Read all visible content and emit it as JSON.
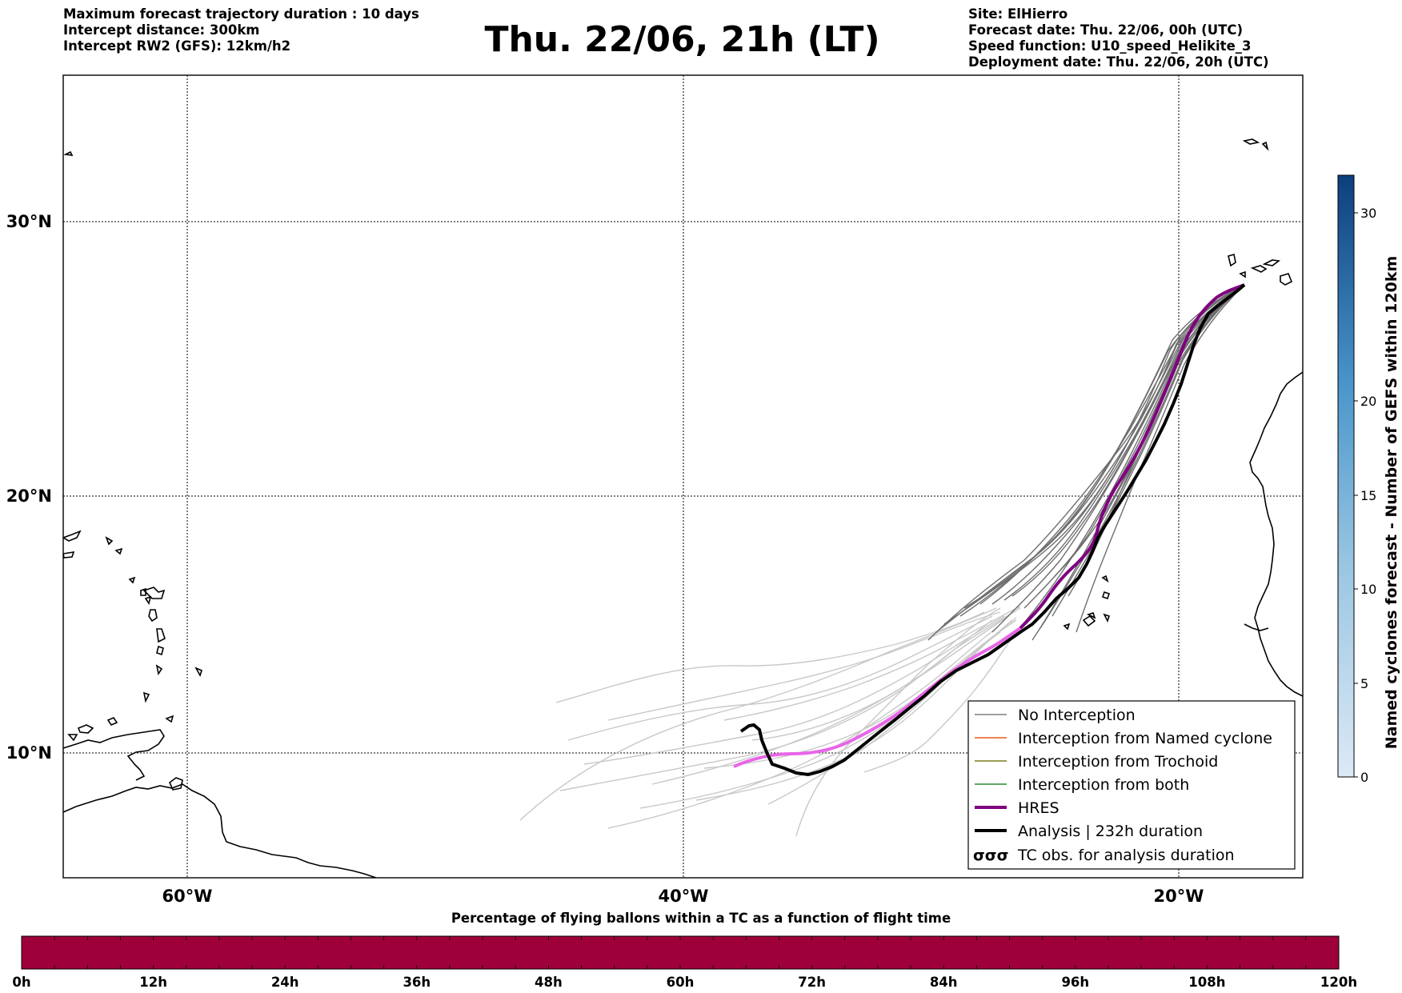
{
  "header": {
    "left_lines": [
      "Maximum forecast trajectory duration : 10 days",
      "Intercept distance: 300km",
      "Intercept RW2 (GFS):  12km/h2"
    ],
    "title": "Thu. 22/06, 21h (LT)",
    "right_lines": [
      "Site: ElHierro",
      "Forecast date: Thu. 22/06, 00h (UTC)",
      "Speed function: U10_speed_Helikite_3",
      "Deployment date: Thu. 22/06, 20h (UTC)"
    ]
  },
  "map": {
    "lat_labels": [
      "30°N",
      "20°N",
      "10°N"
    ],
    "lon_labels": [
      "60°W",
      "40°W",
      "20°W"
    ],
    "gridlines": true
  },
  "legend": {
    "items": [
      {
        "label": "No Interception",
        "color": "#7f7f7f",
        "style": "thin"
      },
      {
        "label": "Interception from Named cyclone",
        "color": "#e8591a",
        "style": "thin"
      },
      {
        "label": "Interception from Trochoid",
        "color": "#7b7f1a",
        "style": "thin"
      },
      {
        "label": "Interception from both",
        "color": "#2a8a2a",
        "style": "thin"
      },
      {
        "label": "HRES",
        "color": "#800080",
        "style": "thick"
      },
      {
        "label": "Analysis | 232h duration",
        "color": "#000000",
        "style": "thick"
      },
      {
        "label": "TC obs. for analysis duration",
        "color": "#000000",
        "style": "symbol",
        "symbol": "σσσ"
      }
    ]
  },
  "colorbar": {
    "label": "Named cyclones forecast - Number of GEFS within 120km",
    "ticks": [
      "0",
      "5",
      "10",
      "15",
      "20",
      "30"
    ]
  },
  "percentage_bar": {
    "title": "Percentage of flying ballons within a TC as a function of flight time",
    "color": "#9e003a",
    "ticks": [
      "0h",
      "12h",
      "24h",
      "36h",
      "48h",
      "60h",
      "72h",
      "84h",
      "96h",
      "108h",
      "120h"
    ]
  },
  "colors": {
    "ensemble_dark": "#6e6e6e",
    "ensemble_light": "#c8c8c8",
    "hres": "#800080",
    "hres_extension": "#e865e8",
    "analysis": "#000000"
  }
}
